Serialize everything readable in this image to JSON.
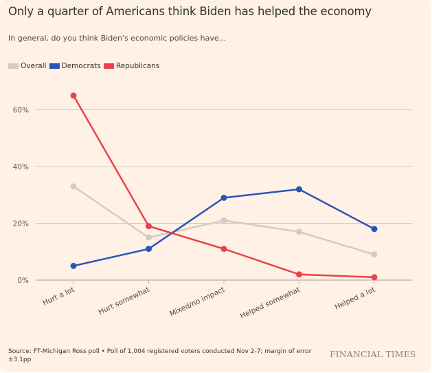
{
  "header": {
    "title": "Only a quarter of Americans think Biden has helped the economy",
    "subtitle": "In general, do you think Biden's economic policies have..."
  },
  "legend": [
    {
      "label": "Overall",
      "color": "#d4ccc4"
    },
    {
      "label": "Democrats",
      "color": "#2a55b8"
    },
    {
      "label": "Republicans",
      "color": "#e8424b"
    }
  ],
  "footer": {
    "source": "Source: FT-Michigan Ross poll • Poll of 1,004 registered voters conducted Nov 2-7; margin of error ±3.1pp",
    "brand": "FINANCIAL TIMES"
  },
  "chart_data": {
    "type": "line",
    "title": "Only a quarter of Americans think Biden has helped the economy",
    "subtitle": "In general, do you think Biden's economic policies have...",
    "xlabel": "",
    "ylabel": "",
    "categories": [
      "Hurt a lot",
      "Hurt somewhat",
      "Mixed/no impact",
      "Helped somewhat",
      "Helped a lot"
    ],
    "ylim": [
      0,
      70
    ],
    "yticks": [
      0,
      20,
      40,
      60
    ],
    "ytick_labels": [
      "0%",
      "20%",
      "40%",
      "60%"
    ],
    "grid": true,
    "legend_position": "top-left",
    "series": [
      {
        "name": "Overall",
        "color": "#d4ccc4",
        "values": [
          33,
          15,
          21,
          17,
          9
        ]
      },
      {
        "name": "Democrats",
        "color": "#2a55b8",
        "values": [
          5,
          11,
          29,
          32,
          18
        ]
      },
      {
        "name": "Republicans",
        "color": "#e8424b",
        "values": [
          65,
          19,
          11,
          2,
          1
        ]
      }
    ]
  }
}
